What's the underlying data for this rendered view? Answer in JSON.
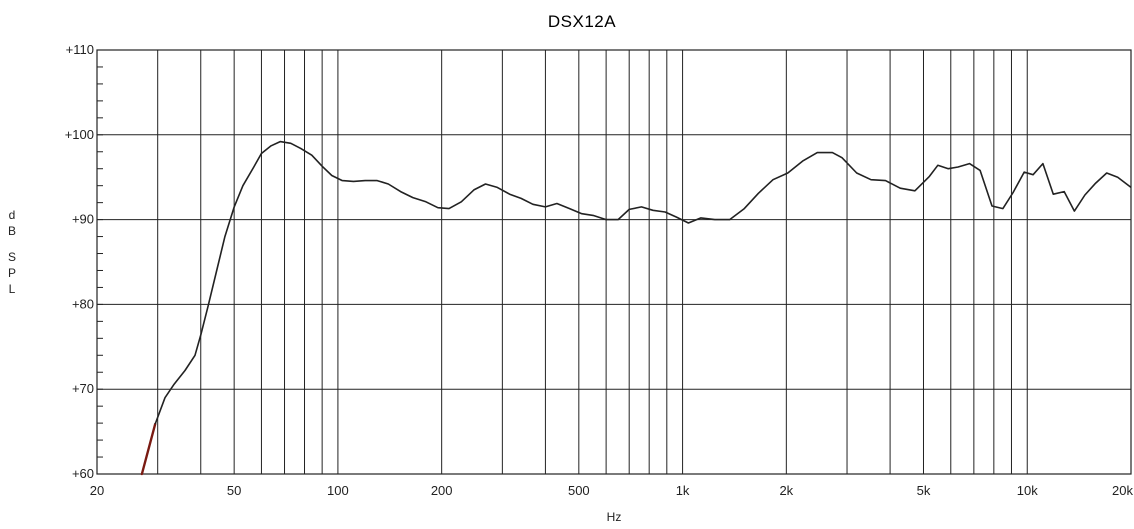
{
  "chart_data": {
    "type": "line",
    "title": "DSX12A",
    "xlabel": "Hz",
    "ylabel": "dB SPL",
    "x_scale": "log",
    "xlim": [
      20,
      20000
    ],
    "ylim": [
      60,
      110
    ],
    "grid": true,
    "x_ticks": [
      20,
      50,
      100,
      200,
      500,
      1000,
      2000,
      5000,
      10000,
      20000
    ],
    "x_tick_labels": [
      "20",
      "50",
      "100",
      "200",
      "500",
      "1k",
      "2k",
      "5k",
      "10k",
      "20k"
    ],
    "x_gridlines": [
      30,
      40,
      50,
      60,
      70,
      80,
      90,
      100,
      200,
      300,
      400,
      500,
      600,
      700,
      800,
      900,
      1000,
      2000,
      3000,
      4000,
      5000,
      6000,
      7000,
      8000,
      9000,
      10000
    ],
    "y_ticks": [
      60,
      70,
      80,
      90,
      100,
      110
    ],
    "y_tick_labels": [
      "+60",
      "+70",
      "+80",
      "+90",
      "+100",
      "+110"
    ],
    "colors": {
      "curve": "#222222",
      "low_segment": "#7a1a12",
      "grid": "#222222"
    },
    "low_segment": {
      "x": [
        27,
        29.5
      ],
      "y": [
        60,
        65.9
      ]
    },
    "series": [
      {
        "x": [
          29.5,
          31.5,
          33.5,
          36,
          38.5,
          40,
          42,
          44.5,
          47,
          50,
          53,
          57,
          60,
          64,
          68,
          73,
          78,
          84,
          90,
          96,
          103,
          111,
          120,
          130,
          140,
          152,
          165,
          180,
          195,
          210,
          228,
          248,
          268,
          290,
          315,
          340,
          368,
          400,
          432,
          470,
          510,
          550,
          600,
          650,
          700,
          760,
          820,
          890,
          960,
          1040,
          1130,
          1240,
          1370,
          1510,
          1660,
          1830,
          2020,
          2230,
          2460,
          2720,
          2900,
          3200,
          3520,
          3880,
          4280,
          4720,
          5200,
          5500,
          5900,
          6300,
          6800,
          7300,
          7900,
          8500,
          9100,
          9800,
          10400,
          11100,
          11900,
          12800,
          13700,
          14700,
          15800,
          17000,
          18300,
          20000
        ],
        "y": [
          65.9,
          69.0,
          70.6,
          72.2,
          74.0,
          76.4,
          79.8,
          84.0,
          88.0,
          91.5,
          94.0,
          96.2,
          97.8,
          98.7,
          99.2,
          99.0,
          98.4,
          97.6,
          96.3,
          95.2,
          94.6,
          94.5,
          94.6,
          94.6,
          94.2,
          93.3,
          92.6,
          92.1,
          91.4,
          91.3,
          92.1,
          93.5,
          94.2,
          93.8,
          93.0,
          92.5,
          91.8,
          91.5,
          91.9,
          91.3,
          90.7,
          90.5,
          90.0,
          90.0,
          91.2,
          91.5,
          91.1,
          90.9,
          90.3,
          89.6,
          90.2,
          90.0,
          90.0,
          91.3,
          93.1,
          94.7,
          95.5,
          96.9,
          97.9,
          97.9,
          97.3,
          95.5,
          94.7,
          94.6,
          93.7,
          93.4,
          95.1,
          96.4,
          96.0,
          96.2,
          96.6,
          95.8,
          91.6,
          91.3,
          93.2,
          95.6,
          95.3,
          96.6,
          93.0,
          93.3,
          91.0,
          92.9,
          94.3,
          95.5,
          95.0,
          93.8
        ]
      }
    ]
  }
}
